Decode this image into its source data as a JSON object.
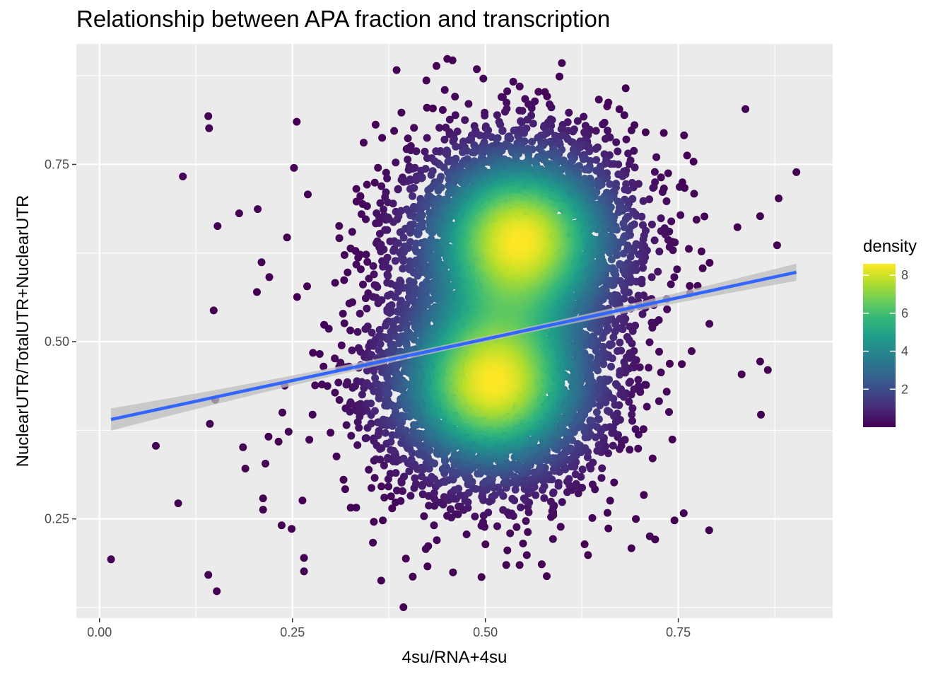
{
  "chart_data": {
    "type": "scatter",
    "title": "Relationship between APA fraction and transcription",
    "xlabel": "4su/RNA+4su",
    "ylabel": "NuclearUTR/TotalUTR+NuclearUTR",
    "xlim": [
      -0.03,
      0.95
    ],
    "ylim": [
      0.11,
      0.92
    ],
    "x_ticks": [
      0.0,
      0.25,
      0.5,
      0.75
    ],
    "x_tick_labels": [
      "0.00",
      "0.25",
      "0.50",
      "0.75"
    ],
    "y_ticks": [
      0.25,
      0.5,
      0.75
    ],
    "y_tick_labels": [
      "0.25",
      "0.50",
      "0.75"
    ],
    "grid": true,
    "legend": {
      "title": "density",
      "position": "right",
      "range": [
        0.0,
        8.6
      ],
      "breaks": [
        2,
        4,
        6,
        8
      ],
      "break_labels": [
        "2",
        "4",
        "6",
        "8"
      ],
      "colormap": "viridis"
    },
    "point_cloud": {
      "description_of_distribution": "bimodal dense cloud",
      "n_points": 9000,
      "modes": [
        {
          "x": 0.545,
          "y": 0.645,
          "sd_x": 0.075,
          "sd_y": 0.075,
          "weight": 0.5
        },
        {
          "x": 0.51,
          "y": 0.44,
          "sd_x": 0.075,
          "sd_y": 0.075,
          "weight": 0.5
        }
      ],
      "outliers": [
        [
          0.015,
          0.193
        ],
        [
          0.073,
          0.353
        ],
        [
          0.102,
          0.272
        ],
        [
          0.108,
          0.733
        ],
        [
          0.141,
          0.818
        ],
        [
          0.142,
          0.801
        ],
        [
          0.141,
          0.171
        ],
        [
          0.143,
          0.384
        ],
        [
          0.148,
          0.544
        ],
        [
          0.152,
          0.148
        ],
        [
          0.153,
          0.663
        ],
        [
          0.15,
          0.418
        ],
        [
          0.181,
          0.681
        ],
        [
          0.186,
          0.351
        ],
        [
          0.189,
          0.321
        ],
        [
          0.204,
          0.57
        ],
        [
          0.205,
          0.687
        ],
        [
          0.21,
          0.612
        ],
        [
          0.212,
          0.279
        ],
        [
          0.212,
          0.263
        ],
        [
          0.215,
          0.328
        ],
        [
          0.219,
          0.366
        ],
        [
          0.22,
          0.591
        ],
        [
          0.232,
          0.359
        ],
        [
          0.236,
          0.241
        ],
        [
          0.237,
          0.4
        ],
        [
          0.24,
          0.438
        ],
        [
          0.243,
          0.647
        ],
        [
          0.245,
          0.373
        ],
        [
          0.249,
          0.236
        ],
        [
          0.252,
          0.745
        ],
        [
          0.256,
          0.563
        ],
        [
          0.263,
          0.276
        ],
        [
          0.265,
          0.176
        ],
        [
          0.265,
          0.195
        ],
        [
          0.269,
          0.578
        ],
        [
          0.385,
          0.883
        ],
        [
          0.432,
          0.829
        ],
        [
          0.58,
          0.846
        ],
        [
          0.837,
          0.828
        ],
        [
          0.903,
          0.739
        ],
        [
          0.856,
          0.677
        ],
        [
          0.88,
          0.702
        ],
        [
          0.878,
          0.636
        ],
        [
          0.866,
          0.46
        ],
        [
          0.856,
          0.472
        ],
        [
          0.857,
          0.397
        ],
        [
          0.832,
          0.454
        ],
        [
          0.72,
          0.221
        ],
        [
          0.745,
          0.248
        ],
        [
          0.79,
          0.234
        ],
        [
          0.633,
          0.199
        ],
        [
          0.495,
          0.168
        ],
        [
          0.365,
          0.163
        ],
        [
          0.397,
          0.194
        ],
        [
          0.425,
          0.183
        ],
        [
          0.527,
          0.185
        ],
        [
          0.573,
          0.186
        ],
        [
          0.757,
          0.258
        ],
        [
          0.695,
          0.25
        ]
      ]
    },
    "regression": {
      "type": "lm",
      "x_range": [
        0.015,
        0.903
      ],
      "intercept": 0.3867,
      "slope": 0.2338,
      "color": "#3366FF",
      "ci_color": "#BDBDBD"
    },
    "panel_background": "#EBEBEB",
    "grid_color": "#FFFFFF"
  }
}
